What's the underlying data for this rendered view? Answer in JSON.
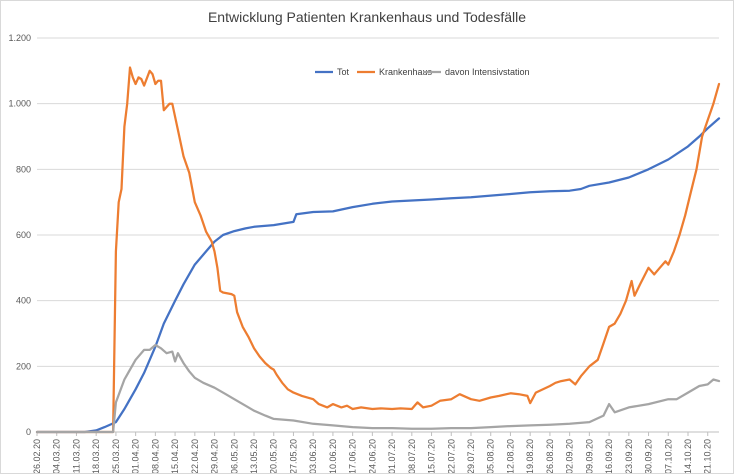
{
  "chart_data": {
    "type": "line",
    "title": "Entwicklung Patienten Krankenhaus und Todesfälle",
    "xlabel": "",
    "ylabel": "",
    "ylim": [
      0,
      1200
    ],
    "yticks": [
      0,
      200,
      400,
      600,
      800,
      1000,
      1200
    ],
    "ytick_labels": [
      "0",
      "200",
      "400",
      "600",
      "800",
      "1.000",
      "1.200"
    ],
    "x_range": [
      "26.02.20",
      "25.10.20"
    ],
    "categories": [
      "26.02.20",
      "04.03.20",
      "11.03.20",
      "18.03.20",
      "25.03.20",
      "01.04.20",
      "08.04.20",
      "15.04.20",
      "22.04.20",
      "29.04.20",
      "06.05.20",
      "13.05.20",
      "20.05.20",
      "27.05.20",
      "03.06.20",
      "10.06.20",
      "17.06.20",
      "24.06.20",
      "01.07.20",
      "08.07.20",
      "15.07.20",
      "22.07.20",
      "29.07.20",
      "05.08.20",
      "12.08.20",
      "19.08.20",
      "26.08.20",
      "02.09.20",
      "09.09.20",
      "16.09.20",
      "23.09.20",
      "30.09.20",
      "07.10.20",
      "14.10.20",
      "21.10.20"
    ],
    "grid": true,
    "legend_position": "top",
    "series": [
      {
        "name": "Tot",
        "color": "#4472C4",
        "points": [
          [
            "26.02.20",
            0
          ],
          [
            "14.03.20",
            0
          ],
          [
            "18.03.20",
            5
          ],
          [
            "21.03.20",
            15
          ],
          [
            "25.03.20",
            30
          ],
          [
            "28.03.20",
            70
          ],
          [
            "01.04.20",
            130
          ],
          [
            "04.04.20",
            180
          ],
          [
            "08.04.20",
            260
          ],
          [
            "11.04.20",
            330
          ],
          [
            "15.04.20",
            400
          ],
          [
            "18.04.20",
            450
          ],
          [
            "22.04.20",
            510
          ],
          [
            "26.04.20",
            550
          ],
          [
            "29.04.20",
            580
          ],
          [
            "02.05.20",
            600
          ],
          [
            "06.05.20",
            612
          ],
          [
            "10.05.20",
            620
          ],
          [
            "13.05.20",
            625
          ],
          [
            "20.05.20",
            630
          ],
          [
            "27.05.20",
            640
          ],
          [
            "28.05.20",
            663
          ],
          [
            "03.06.20",
            670
          ],
          [
            "10.06.20",
            672
          ],
          [
            "17.06.20",
            685
          ],
          [
            "24.06.20",
            695
          ],
          [
            "01.07.20",
            702
          ],
          [
            "08.07.20",
            705
          ],
          [
            "15.07.20",
            708
          ],
          [
            "22.07.20",
            712
          ],
          [
            "29.07.20",
            715
          ],
          [
            "05.08.20",
            720
          ],
          [
            "12.08.20",
            725
          ],
          [
            "19.08.20",
            730
          ],
          [
            "26.08.20",
            733
          ],
          [
            "02.09.20",
            735
          ],
          [
            "06.09.20",
            740
          ],
          [
            "09.09.20",
            750
          ],
          [
            "16.09.20",
            760
          ],
          [
            "23.09.20",
            775
          ],
          [
            "30.09.20",
            800
          ],
          [
            "07.10.20",
            830
          ],
          [
            "14.10.20",
            870
          ],
          [
            "18.10.20",
            900
          ],
          [
            "21.10.20",
            925
          ],
          [
            "25.10.20",
            955
          ]
        ]
      },
      {
        "name": "Krankenhaus",
        "color": "#ED7D31",
        "points": [
          [
            "26.02.20",
            0
          ],
          [
            "24.03.20",
            0
          ],
          [
            "25.03.20",
            550
          ],
          [
            "26.03.20",
            700
          ],
          [
            "27.03.20",
            740
          ],
          [
            "28.03.20",
            930
          ],
          [
            "29.03.20",
            1000
          ],
          [
            "30.03.20",
            1110
          ],
          [
            "31.03.20",
            1080
          ],
          [
            "01.04.20",
            1060
          ],
          [
            "02.04.20",
            1080
          ],
          [
            "03.04.20",
            1075
          ],
          [
            "04.04.20",
            1055
          ],
          [
            "06.04.20",
            1100
          ],
          [
            "07.04.20",
            1090
          ],
          [
            "08.04.20",
            1060
          ],
          [
            "09.04.20",
            1070
          ],
          [
            "10.04.20",
            1070
          ],
          [
            "11.04.20",
            980
          ],
          [
            "12.04.20",
            990
          ],
          [
            "13.04.20",
            1000
          ],
          [
            "14.04.20",
            1000
          ],
          [
            "15.04.20",
            960
          ],
          [
            "16.04.20",
            920
          ],
          [
            "18.04.20",
            840
          ],
          [
            "20.04.20",
            790
          ],
          [
            "22.04.20",
            700
          ],
          [
            "24.04.20",
            660
          ],
          [
            "26.04.20",
            610
          ],
          [
            "28.04.20",
            580
          ],
          [
            "29.04.20",
            550
          ],
          [
            "30.04.20",
            500
          ],
          [
            "01.05.20",
            430
          ],
          [
            "02.05.20",
            425
          ],
          [
            "05.05.20",
            420
          ],
          [
            "06.05.20",
            415
          ],
          [
            "07.05.20",
            365
          ],
          [
            "09.05.20",
            320
          ],
          [
            "11.05.20",
            290
          ],
          [
            "13.05.20",
            255
          ],
          [
            "15.05.20",
            230
          ],
          [
            "17.05.20",
            210
          ],
          [
            "19.05.20",
            195
          ],
          [
            "20.05.20",
            190
          ],
          [
            "21.05.20",
            175
          ],
          [
            "23.05.20",
            150
          ],
          [
            "25.05.20",
            130
          ],
          [
            "27.05.20",
            120
          ],
          [
            "30.05.20",
            110
          ],
          [
            "03.06.20",
            100
          ],
          [
            "05.06.20",
            85
          ],
          [
            "08.06.20",
            75
          ],
          [
            "10.06.20",
            85
          ],
          [
            "13.06.20",
            75
          ],
          [
            "15.06.20",
            80
          ],
          [
            "17.06.20",
            70
          ],
          [
            "20.06.20",
            75
          ],
          [
            "24.06.20",
            70
          ],
          [
            "27.06.20",
            72
          ],
          [
            "01.07.20",
            70
          ],
          [
            "04.07.20",
            72
          ],
          [
            "08.07.20",
            70
          ],
          [
            "10.07.20",
            90
          ],
          [
            "12.07.20",
            75
          ],
          [
            "15.07.20",
            80
          ],
          [
            "18.07.20",
            95
          ],
          [
            "22.07.20",
            100
          ],
          [
            "25.07.20",
            115
          ],
          [
            "29.07.20",
            100
          ],
          [
            "01.08.20",
            95
          ],
          [
            "05.08.20",
            105
          ],
          [
            "08.08.20",
            110
          ],
          [
            "12.08.20",
            118
          ],
          [
            "15.08.20",
            115
          ],
          [
            "18.08.20",
            110
          ],
          [
            "19.08.20",
            88
          ],
          [
            "21.08.20",
            120
          ],
          [
            "26.08.20",
            140
          ],
          [
            "28.08.20",
            150
          ],
          [
            "30.08.20",
            155
          ],
          [
            "02.09.20",
            160
          ],
          [
            "04.09.20",
            145
          ],
          [
            "06.09.20",
            170
          ],
          [
            "09.09.20",
            200
          ],
          [
            "12.09.20",
            220
          ],
          [
            "14.09.20",
            270
          ],
          [
            "16.09.20",
            320
          ],
          [
            "18.09.20",
            330
          ],
          [
            "20.09.20",
            360
          ],
          [
            "22.09.20",
            400
          ],
          [
            "24.09.20",
            460
          ],
          [
            "25.09.20",
            415
          ],
          [
            "27.09.20",
            450
          ],
          [
            "30.09.20",
            500
          ],
          [
            "02.10.20",
            480
          ],
          [
            "04.10.20",
            500
          ],
          [
            "06.10.20",
            520
          ],
          [
            "07.10.20",
            510
          ],
          [
            "09.10.20",
            550
          ],
          [
            "11.10.20",
            600
          ],
          [
            "13.10.20",
            660
          ],
          [
            "15.10.20",
            730
          ],
          [
            "17.10.20",
            800
          ],
          [
            "19.10.20",
            900
          ],
          [
            "21.10.20",
            950
          ],
          [
            "23.10.20",
            1000
          ],
          [
            "25.10.20",
            1060
          ]
        ]
      },
      {
        "name": "davon Intensivstation",
        "color": "#A5A5A5",
        "points": [
          [
            "26.02.20",
            0
          ],
          [
            "24.03.20",
            0
          ],
          [
            "25.03.20",
            90
          ],
          [
            "28.03.20",
            160
          ],
          [
            "01.04.20",
            220
          ],
          [
            "04.04.20",
            250
          ],
          [
            "06.04.20",
            250
          ],
          [
            "08.04.20",
            265
          ],
          [
            "10.04.20",
            255
          ],
          [
            "12.04.20",
            240
          ],
          [
            "14.04.20",
            245
          ],
          [
            "15.04.20",
            215
          ],
          [
            "16.04.20",
            240
          ],
          [
            "18.04.20",
            210
          ],
          [
            "20.04.20",
            185
          ],
          [
            "22.04.20",
            165
          ],
          [
            "25.04.20",
            150
          ],
          [
            "29.04.20",
            135
          ],
          [
            "03.05.20",
            115
          ],
          [
            "06.05.20",
            100
          ],
          [
            "10.05.20",
            80
          ],
          [
            "13.05.20",
            65
          ],
          [
            "17.05.20",
            50
          ],
          [
            "20.05.20",
            40
          ],
          [
            "27.05.20",
            35
          ],
          [
            "03.06.20",
            25
          ],
          [
            "10.06.20",
            20
          ],
          [
            "17.06.20",
            15
          ],
          [
            "24.06.20",
            12
          ],
          [
            "01.07.20",
            12
          ],
          [
            "08.07.20",
            10
          ],
          [
            "15.07.20",
            10
          ],
          [
            "22.07.20",
            12
          ],
          [
            "29.07.20",
            12
          ],
          [
            "05.08.20",
            15
          ],
          [
            "12.08.20",
            18
          ],
          [
            "19.08.20",
            20
          ],
          [
            "26.08.20",
            22
          ],
          [
            "02.09.20",
            25
          ],
          [
            "09.09.20",
            30
          ],
          [
            "14.09.20",
            50
          ],
          [
            "16.09.20",
            85
          ],
          [
            "18.09.20",
            60
          ],
          [
            "23.09.20",
            75
          ],
          [
            "30.09.20",
            85
          ],
          [
            "07.10.20",
            100
          ],
          [
            "10.10.20",
            100
          ],
          [
            "14.10.20",
            120
          ],
          [
            "18.10.20",
            140
          ],
          [
            "21.10.20",
            145
          ],
          [
            "23.10.20",
            160
          ],
          [
            "25.10.20",
            155
          ]
        ]
      }
    ]
  }
}
